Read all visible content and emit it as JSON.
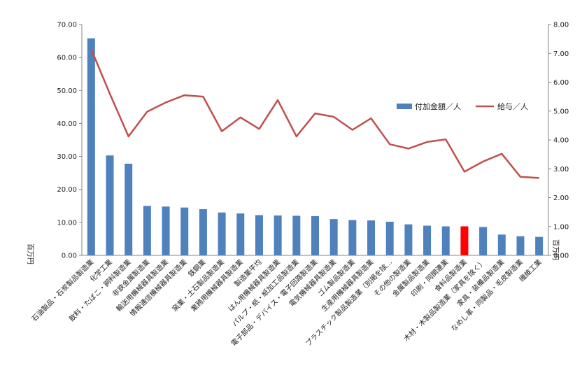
{
  "chart_data": {
    "type": "bar",
    "categories": [
      "石油製品・石炭製品製造業",
      "化学工業",
      "飲料・たばこ・飼料製造業",
      "非鉄金属製造業",
      "輸送用機械器具製造業",
      "情報通信機械器具製造業",
      "鉄鋼業",
      "窯業・土石製品製造業",
      "業務用機械器具製造業",
      "製造業平均",
      "はん用機械器具製造業",
      "パルプ・紙・紙加工品製造業",
      "電子部品・デバイス・電子回路製造業",
      "電気機械器具製造業",
      "ゴム製品製造業",
      "生産用機械器具製造業",
      "プラスチック製品製造業（別掲を除…",
      "その他の製造業",
      "金属製品製造業",
      "印刷・同関連業",
      "食料品製造業",
      "木材・木製品製造業（家具を除く）",
      "家具・装備品製造業",
      "なめし革・同製品・毛皮製造業",
      "繊維工業"
    ],
    "series": [
      {
        "name": "付加金額／人",
        "type": "bar",
        "axis": "left",
        "color": "#4f81bd",
        "values": [
          65.8,
          30.3,
          27.8,
          15.0,
          14.8,
          14.5,
          14.0,
          13.0,
          12.7,
          12.2,
          12.1,
          12.0,
          11.9,
          11.0,
          10.7,
          10.6,
          10.2,
          9.4,
          9.0,
          8.8,
          8.8,
          8.6,
          6.3,
          5.8,
          5.6
        ]
      },
      {
        "name": "給与／人",
        "type": "line",
        "axis": "right",
        "color": "#c0504d",
        "values": [
          7.15,
          5.6,
          4.12,
          4.98,
          5.3,
          5.55,
          5.5,
          4.3,
          4.78,
          4.38,
          5.38,
          4.12,
          4.92,
          4.8,
          4.35,
          4.75,
          3.85,
          3.7,
          3.93,
          4.02,
          2.9,
          3.25,
          3.52,
          2.72,
          2.68
        ]
      }
    ],
    "highlight_index": 20,
    "highlight_color": "#ff0000",
    "y_left": {
      "min": 0,
      "max": 70,
      "step": 10,
      "decimals": 2,
      "unit": "百万円"
    },
    "y_right": {
      "min": 0,
      "max": 8,
      "step": 1,
      "decimals": 2,
      "unit": "百万円"
    },
    "grid": false,
    "legend_position": "right-center"
  }
}
